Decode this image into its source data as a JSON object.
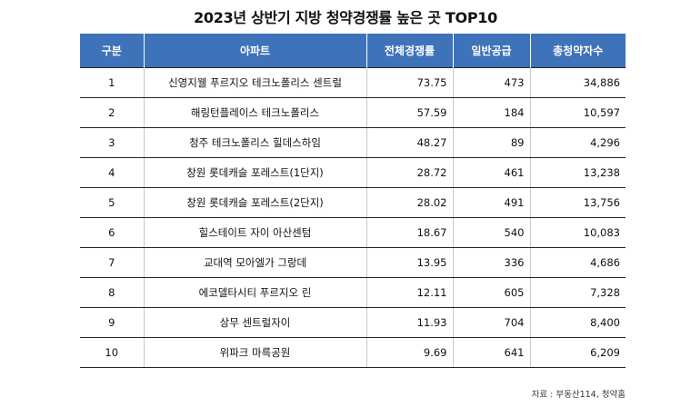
{
  "title": "2023년 상반기 지방 청약경쟁률 높은 곳 TOP10",
  "headers": [
    "구분",
    "아파트",
    "전체경쟁률",
    "일반공급",
    "총청약자수"
  ],
  "rows": [
    {
      "rank": "1",
      "apt": "신영지웰 푸르지오 테크노폴리스 센트럴",
      "ratio": "73.75",
      "supply": "473",
      "applicants": "34,886"
    },
    {
      "rank": "2",
      "apt": "해링턴플레이스 테크노폴리스",
      "ratio": "57.59",
      "supply": "184",
      "applicants": "10,597"
    },
    {
      "rank": "3",
      "apt": "청주 테크노폴리스 힐데스하임",
      "ratio": "48.27",
      "supply": "89",
      "applicants": "4,296"
    },
    {
      "rank": "4",
      "apt": "창원 롯데캐슬 포레스트(1단지)",
      "ratio": "28.72",
      "supply": "461",
      "applicants": "13,238"
    },
    {
      "rank": "5",
      "apt": "창원 롯데캐슬 포레스트(2단지)",
      "ratio": "28.02",
      "supply": "491",
      "applicants": "13,756"
    },
    {
      "rank": "6",
      "apt": "힐스테이트 자이 아산센텀",
      "ratio": "18.67",
      "supply": "540",
      "applicants": "10,083"
    },
    {
      "rank": "7",
      "apt": "교대역 모아엘가 그랑데",
      "ratio": "13.95",
      "supply": "336",
      "applicants": "4,686"
    },
    {
      "rank": "8",
      "apt": "에코델타시티 푸르지오 린",
      "ratio": "12.11",
      "supply": "605",
      "applicants": "7,328"
    },
    {
      "rank": "9",
      "apt": "상무 센트럴자이",
      "ratio": "11.93",
      "supply": "704",
      "applicants": "8,400"
    },
    {
      "rank": "10",
      "apt": "위파크 마륵공원",
      "ratio": "9.69",
      "supply": "641",
      "applicants": "6,209"
    }
  ],
  "source": "자료 : 부동산114, 청약홈",
  "colors": {
    "header_bg": "#3e73b9",
    "header_text": "#ffffff"
  }
}
